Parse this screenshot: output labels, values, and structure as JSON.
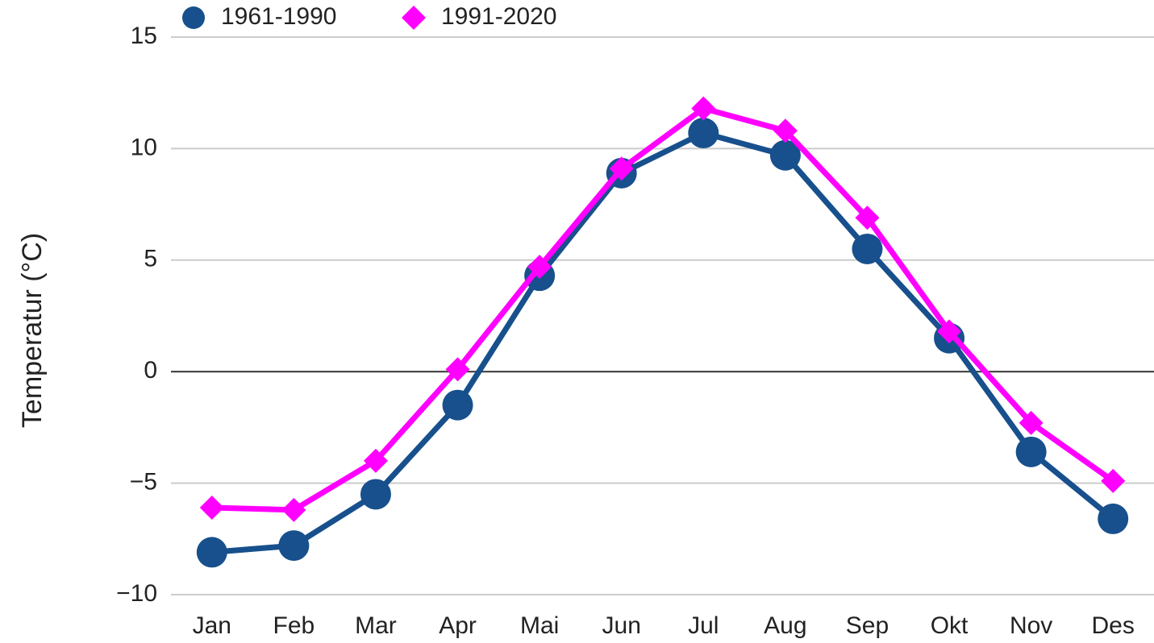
{
  "chart_data": {
    "type": "line",
    "y_label": "Temperatur (°C)",
    "categories": [
      "Jan",
      "Feb",
      "Mar",
      "Apr",
      "Mai",
      "Jun",
      "Jul",
      "Aug",
      "Sep",
      "Okt",
      "Nov",
      "Des"
    ],
    "series": [
      {
        "name": "1961-1990",
        "color": "#17508c",
        "marker": "circle",
        "values": [
          -8.1,
          -7.8,
          -5.5,
          -1.5,
          4.3,
          8.9,
          10.7,
          9.7,
          5.5,
          1.5,
          -3.6,
          -6.6
        ]
      },
      {
        "name": "1991-2020",
        "color": "#ff00ff",
        "marker": "diamond",
        "values": [
          -6.1,
          -6.2,
          -4.0,
          0.1,
          4.7,
          9.1,
          11.8,
          10.8,
          6.9,
          1.8,
          -2.3,
          -4.9
        ]
      }
    ],
    "ylim": [
      -10,
      15
    ],
    "yticks": [
      {
        "value": -10,
        "label": "−10"
      },
      {
        "value": -5,
        "label": "−5"
      },
      0,
      5,
      10,
      15
    ],
    "grid": true,
    "legend": "top"
  }
}
